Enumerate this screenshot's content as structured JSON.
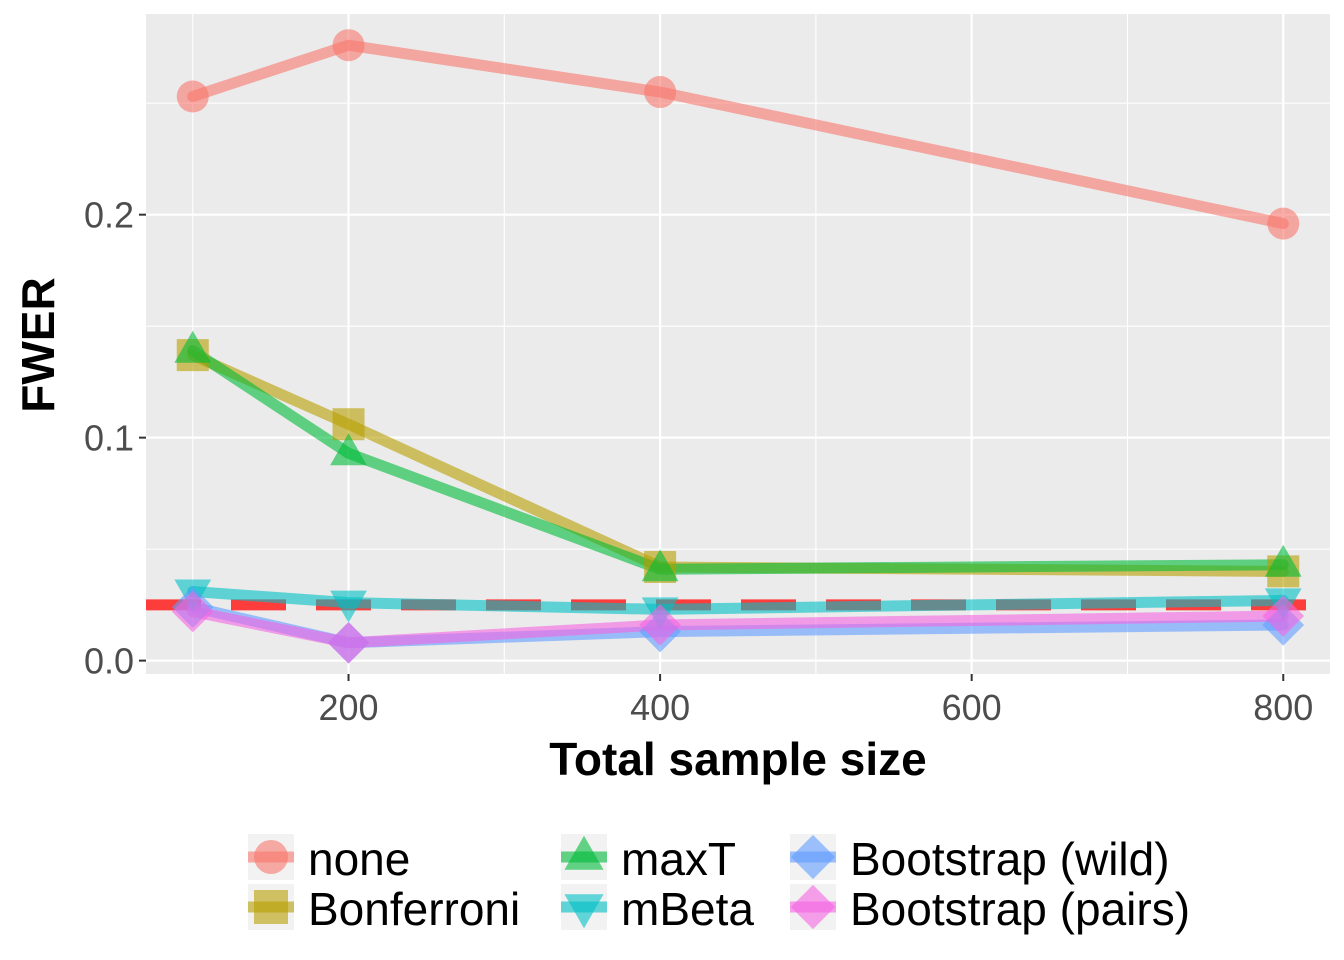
{
  "chart_data": {
    "type": "line",
    "xlabel": "Total sample size",
    "ylabel": "FWER",
    "xlim": [
      70,
      830
    ],
    "ylim": [
      -0.006,
      0.29
    ],
    "x_ticks": [
      200,
      400,
      600,
      800
    ],
    "x_tick_labels": [
      "200",
      "400",
      "600",
      "800"
    ],
    "y_ticks": [
      0.0,
      0.1,
      0.2
    ],
    "y_tick_labels": [
      "0.0",
      "0.1",
      "0.2"
    ],
    "grid": true,
    "legend_position": "bottom",
    "reference_line": {
      "y": 0.025,
      "color": "#ff3333",
      "style": "dashed"
    },
    "x": [
      100,
      200,
      400,
      800
    ],
    "series": [
      {
        "name": "none",
        "color": "#f8766d",
        "marker": "circle",
        "values": [
          0.253,
          0.276,
          0.255,
          0.196
        ]
      },
      {
        "name": "Bonferroni",
        "color": "#b79f00",
        "marker": "square",
        "values": [
          0.137,
          0.106,
          0.042,
          0.04
        ]
      },
      {
        "name": "maxT",
        "color": "#00ba38",
        "marker": "triangle-up",
        "values": [
          0.139,
          0.093,
          0.041,
          0.043
        ]
      },
      {
        "name": "mBeta",
        "color": "#00bfc4",
        "marker": "triangle-down",
        "values": [
          0.031,
          0.026,
          0.023,
          0.027
        ]
      },
      {
        "name": "Bootstrap (wild)",
        "color": "#619cff",
        "marker": "diamond",
        "values": [
          0.024,
          0.008,
          0.013,
          0.016
        ]
      },
      {
        "name": "Bootstrap (pairs)",
        "color": "#f564e3",
        "marker": "diamond",
        "values": [
          0.022,
          0.008,
          0.016,
          0.02
        ]
      }
    ]
  }
}
